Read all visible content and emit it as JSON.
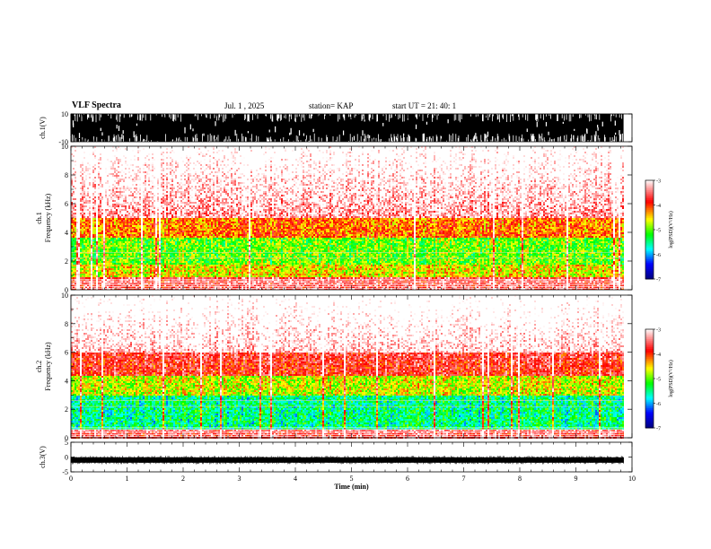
{
  "header": {
    "title": "VLF Spectra",
    "date": "Jul. 1 , 2025",
    "station": "station= KAP",
    "start": "start UT = 21: 40: 1"
  },
  "chart_data": [
    {
      "type": "line",
      "panel": "ch1-waveform",
      "ylabel": "ch.1(V)",
      "ylim": [
        -10,
        10
      ],
      "y_ticks": [
        "10",
        "-10"
      ],
      "xlim": [
        0,
        10
      ],
      "appearance": "dense black waveform saturating full range"
    },
    {
      "type": "heatmap",
      "panel": "ch1-spectrogram",
      "ylabel": "ch.1 Frequency (kHz)",
      "ylim": [
        0,
        10
      ],
      "y_ticks": [
        "0",
        "2",
        "4",
        "6",
        "8",
        "10"
      ],
      "xlim": [
        0,
        9.85
      ],
      "bands_khz": [
        {
          "from": 0,
          "to": 0.9,
          "level": -3.6
        },
        {
          "from": 0.9,
          "to": 1.8,
          "level": -4.6
        },
        {
          "from": 1.8,
          "to": 3.6,
          "level": -5.0
        },
        {
          "from": 3.6,
          "to": 5.0,
          "level": -4.2
        },
        {
          "from": 5.0,
          "to": 10,
          "level": -3.3
        }
      ],
      "colorbar": {
        "label": "log(PSD)(V²/Hz)",
        "range": [
          -7,
          -3
        ],
        "ticks": [
          "-3",
          "-4",
          "-5",
          "-6",
          "-7"
        ]
      }
    },
    {
      "type": "heatmap",
      "panel": "ch2-spectrogram",
      "ylabel": "ch.2 Frequency (kHz)",
      "ylim": [
        0,
        10
      ],
      "y_ticks": [
        "0",
        "2",
        "4",
        "6",
        "8",
        "10"
      ],
      "xlim": [
        0,
        9.85
      ],
      "bands_khz": [
        {
          "from": 0,
          "to": 0.6,
          "level": -3.6
        },
        {
          "from": 0.6,
          "to": 3.0,
          "level": -5.5
        },
        {
          "from": 3.0,
          "to": 4.4,
          "level": -4.7
        },
        {
          "from": 4.4,
          "to": 6.0,
          "level": -3.8
        },
        {
          "from": 6.0,
          "to": 10,
          "level": -3.2
        }
      ],
      "colorbar": {
        "label": "log(PSD)(V²/Hz)",
        "range": [
          -7,
          -3
        ],
        "ticks": [
          "-3",
          "-4",
          "-5",
          "-6",
          "-7"
        ]
      }
    },
    {
      "type": "line",
      "panel": "ch3-waveform",
      "ylabel": "ch.3(V)",
      "ylim": [
        -5,
        5
      ],
      "y_ticks": [
        "5",
        "0",
        "-5"
      ],
      "xlim": [
        0,
        10
      ],
      "appearance": "thick black band near -1 V"
    }
  ],
  "x_axis": {
    "label": "Time (min)",
    "range": [
      0,
      10
    ],
    "ticks": [
      "0",
      "1",
      "2",
      "3",
      "4",
      "5",
      "6",
      "7",
      "8",
      "9",
      "10"
    ]
  },
  "colors": {
    "colormap": [
      "#ffffff",
      "#ff0000",
      "#ffff00",
      "#00ff00",
      "#00ffff",
      "#0000ff",
      "#000080"
    ]
  }
}
